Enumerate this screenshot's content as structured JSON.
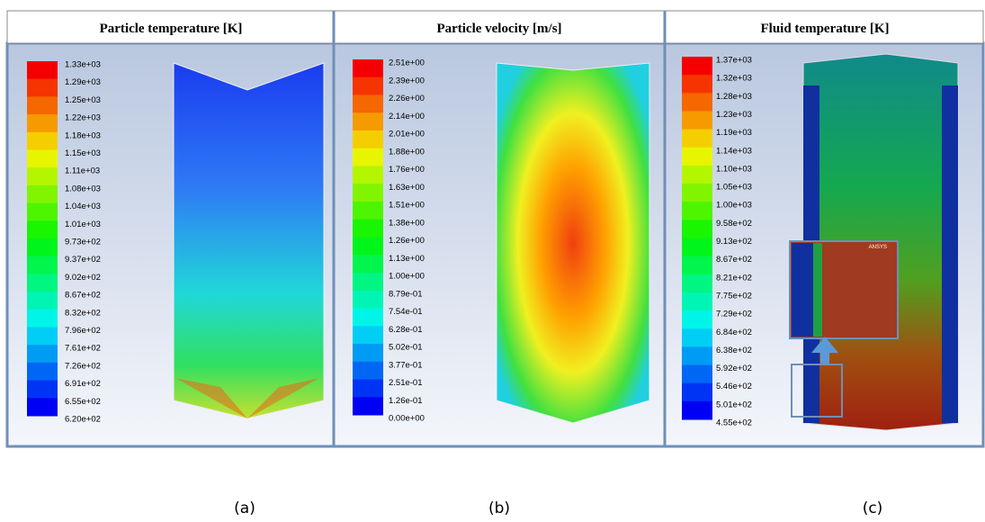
{
  "panels": [
    {
      "title": "Particle temperature [K]",
      "caption": "(a)",
      "legend": [
        "1.33e+03",
        "1.29e+03",
        "1.25e+03",
        "1.22e+03",
        "1.18e+03",
        "1.15e+03",
        "1.11e+03",
        "1.08e+03",
        "1.04e+03",
        "1.01e+03",
        "9.73e+02",
        "9.37e+02",
        "9.02e+02",
        "8.67e+02",
        "8.32e+02",
        "7.96e+02",
        "7.61e+02",
        "7.26e+02",
        "6.91e+02",
        "6.55e+02",
        "6.20e+02"
      ]
    },
    {
      "title": "Particle velocity [m/s]",
      "caption": "(b)",
      "legend": [
        "2.51e+00",
        "2.39e+00",
        "2.26e+00",
        "2.14e+00",
        "2.01e+00",
        "1.88e+00",
        "1.76e+00",
        "1.63e+00",
        "1.51e+00",
        "1.38e+00",
        "1.26e+00",
        "1.13e+00",
        "1.00e+00",
        "8.79e-01",
        "7.54e-01",
        "6.28e-01",
        "5.02e-01",
        "3.77e-01",
        "2.51e-01",
        "1.26e-01",
        "0.00e+00"
      ]
    },
    {
      "title": "Fluid temperature [K]",
      "caption": "(c)",
      "legend": [
        "1.37e+03",
        "1.32e+03",
        "1.28e+03",
        "1.23e+03",
        "1.19e+03",
        "1.14e+03",
        "1.10e+03",
        "1.05e+03",
        "1.00e+03",
        "9.58e+02",
        "9.13e+02",
        "8.67e+02",
        "8.21e+02",
        "7.75e+02",
        "7.29e+02",
        "6.84e+02",
        "6.38e+02",
        "5.92e+02",
        "5.46e+02",
        "5.01e+02",
        "4.55e+02"
      ],
      "inset_logo": "ANSYS"
    }
  ]
}
